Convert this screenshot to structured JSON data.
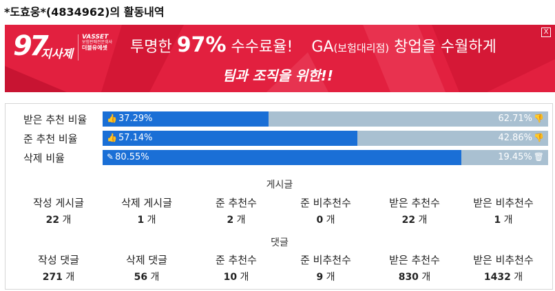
{
  "page_title": "*도효웅*(4834962)의 활동내역",
  "banner": {
    "logo_number": "97",
    "logo_text": "지사제",
    "asset_name": "VASSET",
    "asset_line": "보험판매전문회사",
    "asset_brand": "더블유에셋",
    "headline_1": "투명한",
    "headline_pct": "97%",
    "headline_2": "수수료율!",
    "headline_ga": "GA",
    "headline_ga_small": "(보험대리점)",
    "headline_3": "창업을 수월하게",
    "subline": "팀과 조직을 위한!!",
    "close_label": "X"
  },
  "rates": [
    {
      "label": "받은 추천 비율",
      "left_value": "37.29%",
      "right_value": "62.71%",
      "fill": 0.3729,
      "left_icon": "thumbs-up-icon",
      "right_icon": "thumbs-down-icon"
    },
    {
      "label": "준 추천 비율",
      "left_value": "57.14%",
      "right_value": "42.86%",
      "fill": 0.5714,
      "left_icon": "thumbs-up-icon",
      "right_icon": "thumbs-down-icon"
    },
    {
      "label": "삭제 비율",
      "left_value": "80.55%",
      "right_value": "19.45%",
      "fill": 0.8055,
      "left_icon": "edit-icon",
      "right_icon": "trash-icon"
    }
  ],
  "posts": {
    "title": "게시글",
    "unit": "개",
    "items": [
      {
        "label": "작성 게시글",
        "value": "22"
      },
      {
        "label": "삭제 게시글",
        "value": "1"
      },
      {
        "label": "준 추천수",
        "value": "2"
      },
      {
        "label": "준 비추천수",
        "value": "0"
      },
      {
        "label": "받은 추천수",
        "value": "22"
      },
      {
        "label": "받은 비추천수",
        "value": "1"
      }
    ]
  },
  "comments": {
    "title": "댓글",
    "unit": "개",
    "items": [
      {
        "label": "작성 댓글",
        "value": "271"
      },
      {
        "label": "삭제 댓글",
        "value": "56"
      },
      {
        "label": "준 추천수",
        "value": "10"
      },
      {
        "label": "준 비추천수",
        "value": "9"
      },
      {
        "label": "받은 추천수",
        "value": "830"
      },
      {
        "label": "받은 비추천수",
        "value": "1432"
      }
    ]
  },
  "colors": {
    "bar_fill": "#1a6fd6",
    "bar_track": "#a9c0d1",
    "banner_bg": "#e2203f"
  }
}
